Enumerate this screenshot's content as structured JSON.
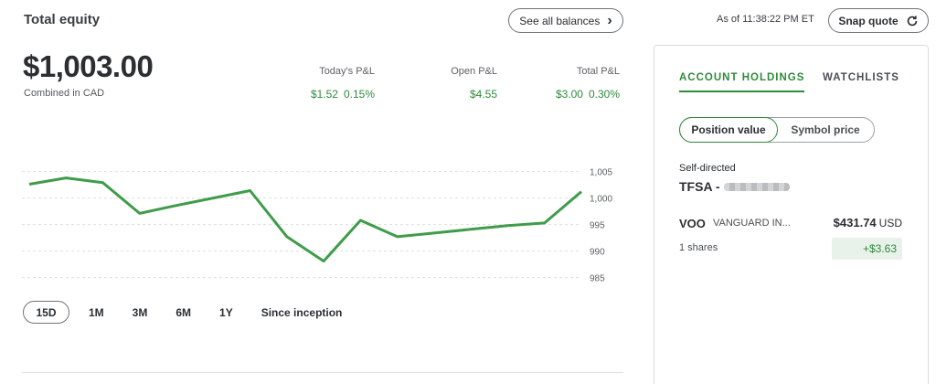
{
  "header": {
    "title": "Total equity",
    "see_all_balances": "See all balances",
    "as_of": "As of 11:38:22 PM ET",
    "snap_quote": "Snap quote",
    "chevron_right": "›",
    "refresh_icon": "↻"
  },
  "summary": {
    "amount": "$1,003.00",
    "currency_note": "Combined in CAD",
    "todays_pl": {
      "label": "Today's P&L",
      "value": "$1.52",
      "percent": "0.15%"
    },
    "open_pl": {
      "label": "Open P&L",
      "value": "$4.55"
    },
    "total_pl": {
      "label": "Total P&L",
      "value": "$3.00",
      "percent": "0.30%"
    },
    "gain_color": "#2f8a3b"
  },
  "periods": [
    "15D",
    "1M",
    "3M",
    "6M",
    "1Y",
    "Since inception"
  ],
  "chart_data": {
    "type": "line",
    "series": [
      {
        "values": [
          1002.6,
          1003.8,
          1002.9,
          997.1,
          998.6,
          1000.0,
          1001.4,
          992.7,
          988.1,
          995.8,
          992.7,
          993.4,
          994.1,
          994.8,
          995.3,
          1001.2
        ]
      }
    ],
    "y_ticks": [
      "1,005",
      "1,000",
      "995",
      "990",
      "985"
    ],
    "y_tick_values": [
      1005,
      1000,
      995,
      990,
      985
    ],
    "ylim": [
      982,
      1007
    ],
    "grid": true,
    "line_color": "#3f9c4a"
  },
  "panel": {
    "tabs": [
      "ACCOUNT HOLDINGS",
      "WATCHLISTS"
    ],
    "toggle": [
      "Position value",
      "Symbol price"
    ],
    "account_type": "Self-directed",
    "account_name": "TFSA -",
    "holding": {
      "symbol": "VOO",
      "name": "VANGUARD IN...",
      "price": "$431.74",
      "price_currency": "USD",
      "shares": "1 shares",
      "gain": "+$3.63"
    }
  }
}
